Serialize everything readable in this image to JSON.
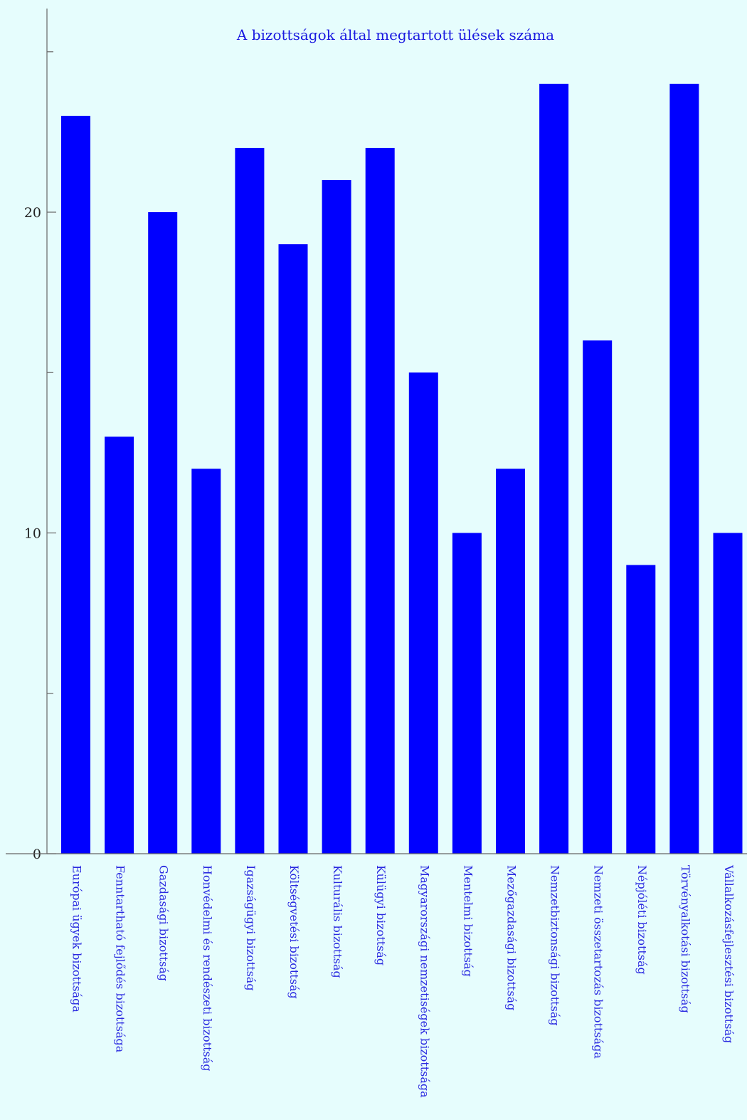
{
  "chart_data": {
    "type": "bar",
    "title": "A bizottságok által megtartott ülések száma",
    "xlabel": "",
    "ylabel": "",
    "ylim": [
      0,
      26.5
    ],
    "yticks": [
      0,
      10,
      20
    ],
    "ytick_labels": [
      "0",
      "10",
      "20"
    ],
    "minor_yticks": [
      5,
      15,
      25
    ],
    "grid": false,
    "bar_color": "#0000ff",
    "categories": [
      "Európai ügyek bizottsága",
      "Fenntartható fejlődés bizottsága",
      "Gazdasági bizottság",
      "Honvédelmi és rendészeti bizottság",
      "Igazságügyi bizottság",
      "Költségvetési bizottság",
      "Kulturális bizottság",
      "Külügyi bizottság",
      "Magyarországi nemzetiségek bizottsága",
      "Mentelmi bizottság",
      "Mezőgazdasági bizottság",
      "Nemzetbiztonsági bizottság",
      "Nemzeti összetartozás bizottsága",
      "Népjóléti bizottság",
      "Törvényalkotási bizottság",
      "Vállalkozásfejlesztési bizottság"
    ],
    "values": [
      23,
      13,
      20,
      12,
      22,
      19,
      21,
      22,
      15,
      10,
      12,
      24,
      16,
      9,
      24,
      10
    ]
  }
}
